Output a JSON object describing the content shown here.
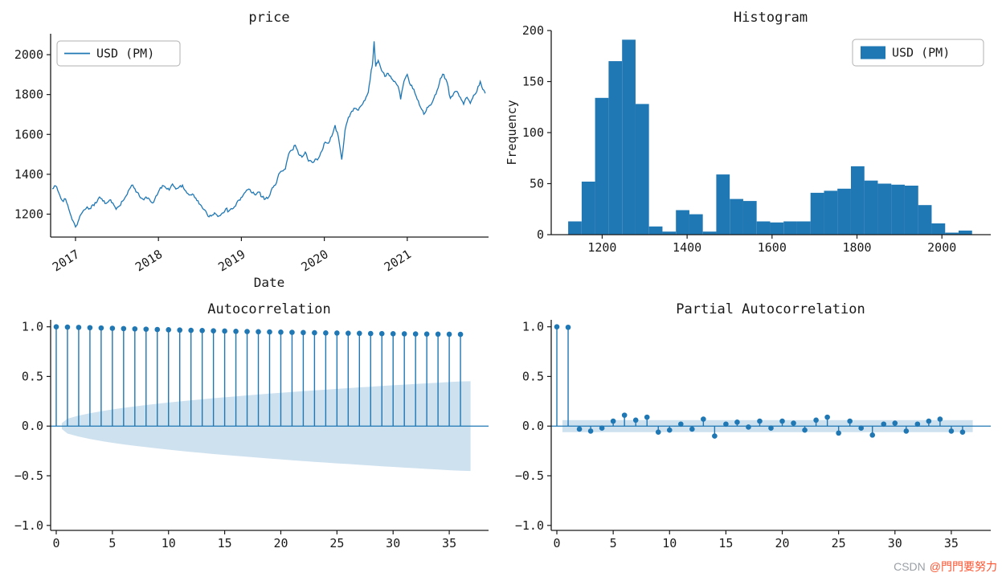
{
  "figure": {
    "background": "#ffffff",
    "accent_blue": "#1f77b4",
    "band_blue": "rgba(31,119,180,0.22)",
    "ink": "#1a1a1a"
  },
  "watermark": {
    "site": "CSDN",
    "handle": "@門門要努力"
  },
  "chart_data": [
    {
      "type": "line",
      "title": "price",
      "xlabel": "Date",
      "legend_label": "USD (PM)",
      "legend_position": "upper left",
      "xlim": [
        2016.7,
        2021.98
      ],
      "ylim": [
        1085,
        2105
      ],
      "x_ticks": {
        "values": [
          2017,
          2018,
          2019,
          2020,
          2021
        ],
        "labels": [
          "2017",
          "2018",
          "2019",
          "2020",
          "2021"
        ]
      },
      "y_ticks": {
        "values": [
          1200,
          1400,
          1600,
          1800,
          2000
        ],
        "labels": [
          "1200",
          "1400",
          "1600",
          "1800",
          "2000"
        ]
      },
      "series": [
        {
          "name": "USD (PM)",
          "points": [
            [
              2016.72,
              1327
            ],
            [
              2016.76,
              1342
            ],
            [
              2016.8,
              1306
            ],
            [
              2016.84,
              1268
            ],
            [
              2016.88,
              1276
            ],
            [
              2016.92,
              1224
            ],
            [
              2016.96,
              1172
            ],
            [
              2017.0,
              1136
            ],
            [
              2017.03,
              1162
            ],
            [
              2017.06,
              1196
            ],
            [
              2017.1,
              1221
            ],
            [
              2017.14,
              1236
            ],
            [
              2017.17,
              1228
            ],
            [
              2017.21,
              1247
            ],
            [
              2017.25,
              1256
            ],
            [
              2017.29,
              1286
            ],
            [
              2017.33,
              1266
            ],
            [
              2017.37,
              1254
            ],
            [
              2017.41,
              1271
            ],
            [
              2017.45,
              1256
            ],
            [
              2017.49,
              1224
            ],
            [
              2017.53,
              1241
            ],
            [
              2017.57,
              1266
            ],
            [
              2017.61,
              1291
            ],
            [
              2017.65,
              1326
            ],
            [
              2017.69,
              1346
            ],
            [
              2017.73,
              1311
            ],
            [
              2017.77,
              1292
            ],
            [
              2017.81,
              1276
            ],
            [
              2017.85,
              1286
            ],
            [
              2017.89,
              1276
            ],
            [
              2017.93,
              1256
            ],
            [
              2017.97,
              1291
            ],
            [
              2018.01,
              1321
            ],
            [
              2018.05,
              1344
            ],
            [
              2018.09,
              1331
            ],
            [
              2018.13,
              1321
            ],
            [
              2018.17,
              1351
            ],
            [
              2018.21,
              1326
            ],
            [
              2018.25,
              1336
            ],
            [
              2018.29,
              1346
            ],
            [
              2018.33,
              1316
            ],
            [
              2018.37,
              1296
            ],
            [
              2018.41,
              1301
            ],
            [
              2018.45,
              1281
            ],
            [
              2018.49,
              1251
            ],
            [
              2018.53,
              1231
            ],
            [
              2018.57,
              1216
            ],
            [
              2018.61,
              1186
            ],
            [
              2018.65,
              1196
            ],
            [
              2018.69,
              1201
            ],
            [
              2018.73,
              1191
            ],
            [
              2018.77,
              1206
            ],
            [
              2018.81,
              1226
            ],
            [
              2018.85,
              1216
            ],
            [
              2018.89,
              1226
            ],
            [
              2018.93,
              1241
            ],
            [
              2018.97,
              1271
            ],
            [
              2019.01,
              1286
            ],
            [
              2019.05,
              1311
            ],
            [
              2019.09,
              1326
            ],
            [
              2019.13,
              1306
            ],
            [
              2019.17,
              1296
            ],
            [
              2019.21,
              1311
            ],
            [
              2019.25,
              1286
            ],
            [
              2019.29,
              1276
            ],
            [
              2019.33,
              1286
            ],
            [
              2019.37,
              1331
            ],
            [
              2019.41,
              1346
            ],
            [
              2019.45,
              1401
            ],
            [
              2019.49,
              1416
            ],
            [
              2019.53,
              1426
            ],
            [
              2019.57,
              1501
            ],
            [
              2019.61,
              1521
            ],
            [
              2019.65,
              1546
            ],
            [
              2019.69,
              1501
            ],
            [
              2019.73,
              1486
            ],
            [
              2019.77,
              1511
            ],
            [
              2019.81,
              1466
            ],
            [
              2019.85,
              1461
            ],
            [
              2019.89,
              1476
            ],
            [
              2019.93,
              1481
            ],
            [
              2019.97,
              1516
            ],
            [
              2020.01,
              1561
            ],
            [
              2020.05,
              1556
            ],
            [
              2020.09,
              1591
            ],
            [
              2020.13,
              1646
            ],
            [
              2020.17,
              1586
            ],
            [
              2020.21,
              1474
            ],
            [
              2020.25,
              1621
            ],
            [
              2020.29,
              1686
            ],
            [
              2020.33,
              1716
            ],
            [
              2020.37,
              1731
            ],
            [
              2020.41,
              1721
            ],
            [
              2020.45,
              1746
            ],
            [
              2020.49,
              1771
            ],
            [
              2020.53,
              1811
            ],
            [
              2020.56,
              1901
            ],
            [
              2020.58,
              1951
            ],
            [
              2020.6,
              2067
            ],
            [
              2020.62,
              1941
            ],
            [
              2020.65,
              1971
            ],
            [
              2020.69,
              1921
            ],
            [
              2020.73,
              1891
            ],
            [
              2020.77,
              1906
            ],
            [
              2020.81,
              1881
            ],
            [
              2020.85,
              1866
            ],
            [
              2020.89,
              1841
            ],
            [
              2020.92,
              1776
            ],
            [
              2020.96,
              1866
            ],
            [
              2021.0,
              1901
            ],
            [
              2021.04,
              1846
            ],
            [
              2021.08,
              1826
            ],
            [
              2021.12,
              1776
            ],
            [
              2021.16,
              1736
            ],
            [
              2021.2,
              1701
            ],
            [
              2021.24,
              1736
            ],
            [
              2021.28,
              1746
            ],
            [
              2021.32,
              1781
            ],
            [
              2021.36,
              1821
            ],
            [
              2021.4,
              1881
            ],
            [
              2021.44,
              1901
            ],
            [
              2021.48,
              1861
            ],
            [
              2021.52,
              1781
            ],
            [
              2021.56,
              1806
            ],
            [
              2021.6,
              1816
            ],
            [
              2021.64,
              1786
            ],
            [
              2021.68,
              1751
            ],
            [
              2021.72,
              1786
            ],
            [
              2021.76,
              1756
            ],
            [
              2021.8,
              1796
            ],
            [
              2021.84,
              1816
            ],
            [
              2021.88,
              1866
            ],
            [
              2021.91,
              1826
            ],
            [
              2021.94,
              1806
            ]
          ]
        }
      ]
    },
    {
      "type": "histogram",
      "title": "Histogram",
      "ylabel": "Frequency",
      "legend_label": "USD (PM)",
      "legend_position": "upper right",
      "xlim": [
        1080,
        2115
      ],
      "ylim": [
        0,
        200
      ],
      "x_ticks": {
        "values": [
          1200,
          1400,
          1600,
          1800,
          2000
        ],
        "labels": [
          "1200",
          "1400",
          "1600",
          "1800",
          "2000"
        ]
      },
      "y_ticks": {
        "values": [
          0,
          50,
          100,
          150,
          200
        ],
        "labels": [
          "0",
          "50",
          "100",
          "150",
          "200"
        ]
      },
      "bin_start": 1120,
      "bin_width": 31.7,
      "frequencies": [
        13,
        52,
        134,
        170,
        191,
        128,
        8,
        3,
        24,
        20,
        3,
        59,
        35,
        33,
        13,
        12,
        13,
        13,
        41,
        43,
        45,
        67,
        53,
        50,
        49,
        48,
        29,
        11,
        2,
        4
      ]
    },
    {
      "type": "stem",
      "title": "Autocorrelation",
      "xlim": [
        -0.5,
        38.5
      ],
      "ylim": [
        -1.05,
        1.07
      ],
      "x_ticks": {
        "values": [
          0,
          5,
          10,
          15,
          20,
          25,
          30,
          35
        ],
        "labels": [
          "0",
          "5",
          "10",
          "15",
          "20",
          "25",
          "30",
          "35"
        ]
      },
      "y_ticks": {
        "values": [
          -1,
          -0.5,
          0,
          0.5,
          1
        ],
        "labels": [
          "−1.0",
          "−0.5",
          "0.0",
          "0.5",
          "1.0"
        ]
      },
      "values": [
        1.0,
        0.997,
        0.994,
        0.991,
        0.988,
        0.985,
        0.982,
        0.979,
        0.976,
        0.973,
        0.97,
        0.967,
        0.964,
        0.962,
        0.959,
        0.957,
        0.954,
        0.952,
        0.95,
        0.948,
        0.946,
        0.944,
        0.942,
        0.94,
        0.938,
        0.937,
        0.935,
        0.934,
        0.932,
        0.931,
        0.93,
        0.929,
        0.928,
        0.927,
        0.926,
        0.925,
        0.924
      ],
      "band_x": [
        0.5,
        1,
        2,
        3,
        4,
        5,
        6,
        7,
        8,
        9,
        10,
        11,
        12,
        13,
        14,
        15,
        16,
        17,
        18,
        19,
        20,
        21,
        22,
        23,
        24,
        25,
        26,
        27,
        28,
        29,
        30,
        31,
        32,
        33,
        34,
        35,
        36,
        36.9
      ],
      "band_y": [
        0.03,
        0.075,
        0.106,
        0.13,
        0.15,
        0.168,
        0.184,
        0.198,
        0.212,
        0.225,
        0.237,
        0.249,
        0.26,
        0.27,
        0.281,
        0.29,
        0.3,
        0.309,
        0.318,
        0.327,
        0.335,
        0.344,
        0.352,
        0.36,
        0.367,
        0.375,
        0.382,
        0.39,
        0.397,
        0.404,
        0.411,
        0.418,
        0.424,
        0.431,
        0.437,
        0.444,
        0.45,
        0.452
      ]
    },
    {
      "type": "stem",
      "title": "Partial Autocorrelation",
      "xlim": [
        -0.5,
        38.5
      ],
      "ylim": [
        -1.05,
        1.07
      ],
      "x_ticks": {
        "values": [
          0,
          5,
          10,
          15,
          20,
          25,
          30,
          35
        ],
        "labels": [
          "0",
          "5",
          "10",
          "15",
          "20",
          "25",
          "30",
          "35"
        ]
      },
      "y_ticks": {
        "values": [
          -1,
          -0.5,
          0,
          0.5,
          1
        ],
        "labels": [
          "−1.0",
          "−0.5",
          "0.0",
          "0.5",
          "1.0"
        ]
      },
      "values": [
        1.0,
        0.995,
        -0.03,
        -0.05,
        -0.02,
        0.05,
        0.11,
        0.06,
        0.09,
        -0.06,
        -0.04,
        0.02,
        -0.03,
        0.07,
        -0.1,
        0.02,
        0.04,
        -0.01,
        0.05,
        -0.02,
        0.05,
        0.03,
        -0.04,
        0.06,
        0.09,
        -0.07,
        0.05,
        -0.02,
        -0.09,
        0.02,
        0.03,
        -0.05,
        0.02,
        0.05,
        0.07,
        -0.05,
        -0.06
      ],
      "band_x": [
        0.5,
        36.9
      ],
      "band_y": [
        0.06,
        0.06
      ]
    }
  ]
}
